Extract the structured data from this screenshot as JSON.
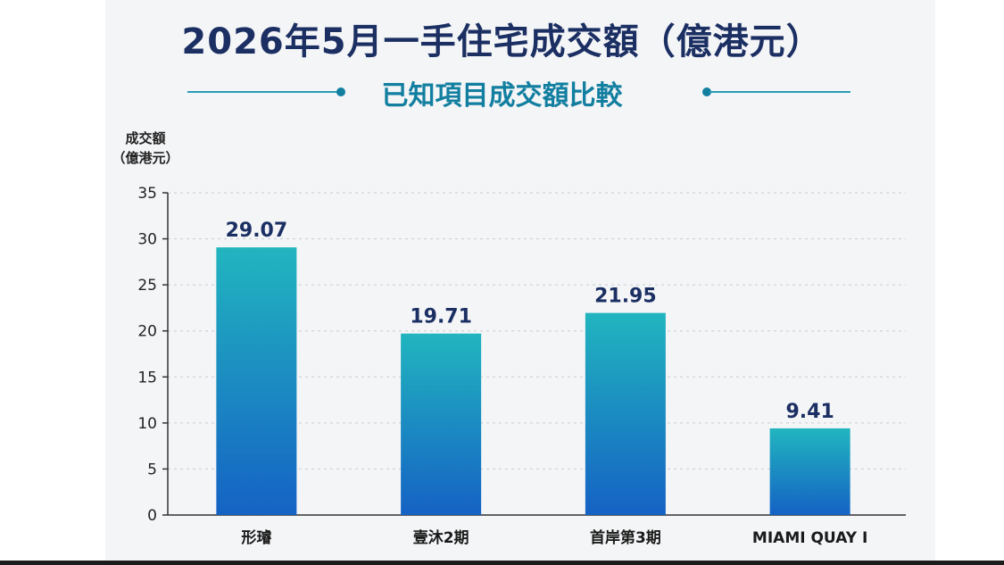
{
  "chart_data": {
    "type": "bar",
    "title": "2026年5月一手住宅成交額（億港元）",
    "subtitle": "已知項目成交額比較",
    "ylabel_line1": "成交額",
    "ylabel_line2": "（億港元）",
    "categories": [
      "形璿",
      "壹沐2期",
      "首岸第3期",
      "MIAMI QUAY I"
    ],
    "values": [
      29.07,
      19.71,
      21.95,
      9.41
    ],
    "value_labels": [
      "29.07",
      "19.71",
      "21.95",
      "9.41"
    ],
    "ylim": [
      0,
      35
    ],
    "yticks": [
      0,
      5,
      10,
      15,
      20,
      25,
      30,
      35
    ],
    "grid": true,
    "colors": {
      "bar_top": "#21b5bf",
      "bar_bottom": "#1562c4",
      "value_label": "#1b2f63",
      "title": "#1b2f63",
      "subtitle": "#127fa0"
    }
  }
}
